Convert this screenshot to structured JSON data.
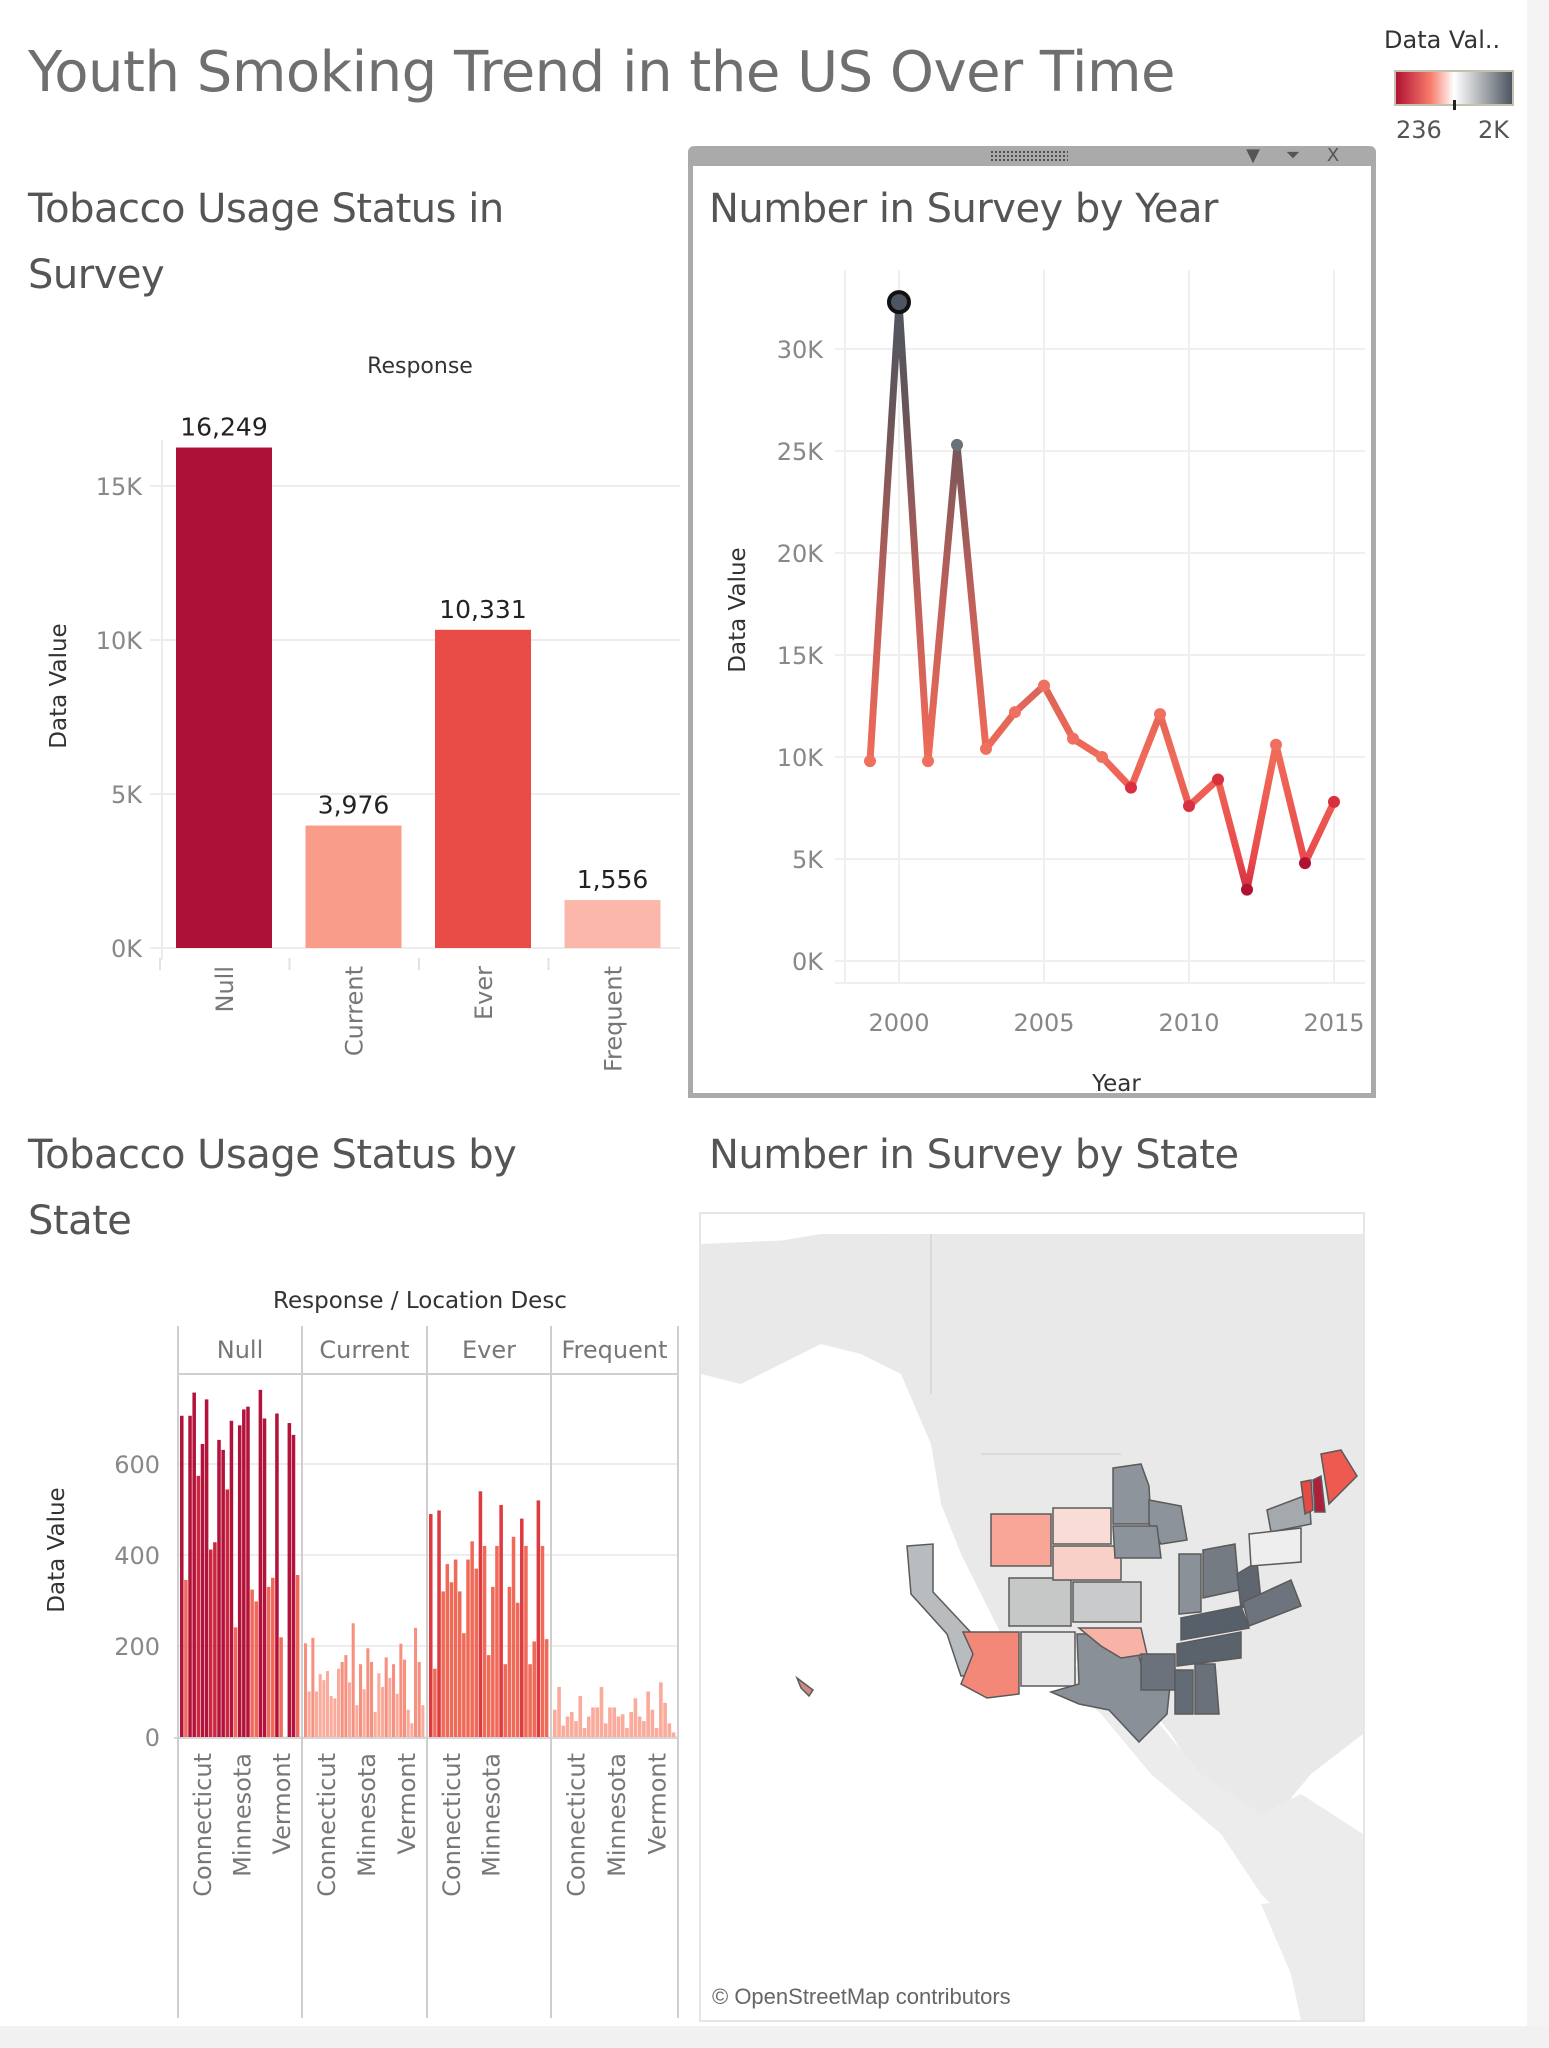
{
  "dashboard": {
    "title": "Youth Smoking Trend in the US Over Time"
  },
  "legend": {
    "title": "Data Val..",
    "min_label": "236",
    "max_label": "2K",
    "colors": {
      "low": "#b11234",
      "mid_low": "#f77d6c",
      "mid": "#ffffff",
      "mid_high": "#a9adb1",
      "high": "#4d5562"
    }
  },
  "panel_controls": {
    "grip_icon": "drag-handle-icon",
    "menu_icon": "dropdown-triangle-icon",
    "filter_icon": "filter-funnel-icon",
    "close_label": "X"
  },
  "sheets": {
    "bar": {
      "title_line1": "Tobacco Usage Status in",
      "title_line2": "Survey"
    },
    "line": {
      "title": "Number in Survey by Year"
    },
    "facet": {
      "title_line1": "Tobacco Usage Status by",
      "title_line2": "State"
    },
    "map": {
      "title": "Number in Survey by State",
      "attribution": "© OpenStreetMap contributors"
    }
  },
  "chart_data": [
    {
      "id": "status_bar",
      "type": "bar",
      "title": "Tobacco Usage Status in Survey",
      "header": "Response",
      "xlabel": "",
      "ylabel": "Data Value",
      "categories": [
        "Null",
        "Current",
        "Ever",
        "Frequent"
      ],
      "values": [
        16249,
        3976,
        10331,
        1556
      ],
      "value_labels": [
        "16,249",
        "3,976",
        "10,331",
        "1,556"
      ],
      "colors": [
        "#ad1236",
        "#f99d8a",
        "#e94b47",
        "#fbb7aa"
      ],
      "ylim": [
        0,
        17500
      ],
      "yticks": [
        0,
        5000,
        10000,
        15000
      ],
      "ytick_labels": [
        "0K",
        "5K",
        "10K",
        "15K"
      ],
      "grid": true
    },
    {
      "id": "year_line",
      "type": "line",
      "title": "Number in Survey by Year",
      "xlabel": "Year",
      "ylabel": "Data Value",
      "x": [
        1999,
        2000,
        2001,
        2002,
        2003,
        2004,
        2005,
        2006,
        2007,
        2008,
        2009,
        2010,
        2011,
        2012,
        2013,
        2014,
        2015
      ],
      "values": [
        9800,
        32300,
        9800,
        25300,
        10400,
        12200,
        13500,
        10900,
        10000,
        8500,
        12100,
        7600,
        8900,
        3500,
        10600,
        4800,
        7800
      ],
      "highlighted_point": 2000,
      "xlim": [
        1997.5,
        2016
      ],
      "ylim": [
        -1000,
        35000
      ],
      "xticks": [
        2000,
        2005,
        2010,
        2015
      ],
      "xtick_labels": [
        "2000",
        "2005",
        "2010",
        "2015"
      ],
      "yticks": [
        0,
        5000,
        10000,
        15000,
        20000,
        25000,
        30000
      ],
      "ytick_labels": [
        "0K",
        "5K",
        "10K",
        "15K",
        "20K",
        "25K",
        "30K"
      ],
      "grid": true
    },
    {
      "id": "state_facets",
      "type": "bar",
      "title": "Tobacco Usage Status by State",
      "header": "Response / Location Desc",
      "ylabel": "Data Value",
      "ylim": [
        -10,
        820
      ],
      "yticks": [
        0,
        200,
        400,
        600
      ],
      "ytick_labels": [
        "0",
        "200",
        "400",
        "600"
      ],
      "facets": [
        {
          "name": "Null",
          "labels": [
            "Connecticut",
            "Minnesota",
            "Vermont"
          ],
          "values": [
            706,
            345,
            706,
            757,
            574,
            644,
            742,
            412,
            428,
            653,
            631,
            544,
            695,
            241,
            685,
            720,
            726,
            324,
            298,
            763,
            700,
            330,
            350,
            711,
            219,
            0,
            690,
            664,
            356
          ]
        },
        {
          "name": "Current",
          "labels": [
            "Connecticut",
            "Minnesota",
            "Vermont"
          ],
          "values": [
            206,
            100,
            218,
            100,
            138,
            125,
            145,
            90,
            85,
            150,
            165,
            180,
            120,
            250,
            70,
            160,
            105,
            195,
            165,
            55,
            140,
            110,
            175,
            130,
            160,
            95,
            205,
            170,
            60,
            30,
            240,
            165,
            70
          ]
        },
        {
          "name": "Ever",
          "labels": [
            "Connecticut",
            "Minnesota"
          ],
          "values": [
            490,
            150,
            498,
            320,
            380,
            340,
            390,
            320,
            228,
            390,
            430,
            370,
            540,
            420,
            180,
            330,
            420,
            510,
            160,
            330,
            440,
            295,
            480,
            420,
            160,
            210,
            520,
            420,
            215
          ]
        },
        {
          "name": "Frequent",
          "labels": [
            "Connecticut",
            "Minnesota",
            "Vermont"
          ],
          "values": [
            60,
            110,
            25,
            45,
            55,
            35,
            90,
            20,
            45,
            65,
            65,
            110,
            30,
            65,
            65,
            45,
            50,
            20,
            55,
            85,
            45,
            35,
            100,
            60,
            20,
            120,
            75,
            30,
            10
          ]
        }
      ],
      "grid": true
    }
  ],
  "map": {
    "states": [
      {
        "name": "California",
        "color": "#b8bcbf"
      },
      {
        "name": "Arizona",
        "color": "#f38878"
      },
      {
        "name": "New Mexico",
        "color": "#e6e6e6"
      },
      {
        "name": "Texas",
        "color": "#8a9097"
      },
      {
        "name": "Oklahoma",
        "color": "#f9b3a6"
      },
      {
        "name": "Kansas",
        "color": "#c8cacb"
      },
      {
        "name": "Colorado",
        "color": "#c6c8c8"
      },
      {
        "name": "Wyoming",
        "color": "#f7a697"
      },
      {
        "name": "South Dakota",
        "color": "#fadcd6"
      },
      {
        "name": "Nebraska",
        "color": "#f8d0c8"
      },
      {
        "name": "Minnesota",
        "color": "#8e949b"
      },
      {
        "name": "Wisconsin",
        "color": "#8d939a"
      },
      {
        "name": "Iowa",
        "color": "#8d939a"
      },
      {
        "name": "Arkansas",
        "color": "#6b727b"
      },
      {
        "name": "Mississippi",
        "color": "#626a74"
      },
      {
        "name": "Alabama",
        "color": "#6a717a"
      },
      {
        "name": "Tennessee",
        "color": "#5a626c"
      },
      {
        "name": "Kentucky",
        "color": "#575f6a"
      },
      {
        "name": "Indiana",
        "color": "#8b9198"
      },
      {
        "name": "Ohio",
        "color": "#747b83"
      },
      {
        "name": "West Virginia",
        "color": "#5f6670"
      },
      {
        "name": "Virginia",
        "color": "#6d747d"
      },
      {
        "name": "New York",
        "color": "#a4a9ad"
      },
      {
        "name": "Pennsylvania",
        "color": "#eeeeee"
      },
      {
        "name": "Vermont",
        "color": "#e64a44"
      },
      {
        "name": "New Hampshire",
        "color": "#b11e3a"
      },
      {
        "name": "Maine",
        "color": "#ee5a4f"
      },
      {
        "name": "Hawaii",
        "color": "#c98a84"
      }
    ]
  }
}
